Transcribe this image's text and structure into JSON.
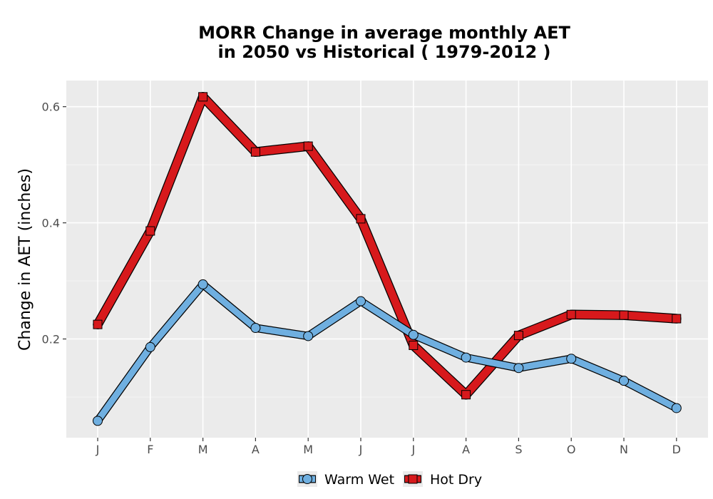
{
  "chart_data": {
    "type": "line",
    "title": "MORR  Change in average monthly AET",
    "subtitle": "in 2050 vs Historical ( 1979-2012 )",
    "xlabel": "",
    "ylabel": "Change in AET (inches)",
    "categories": [
      "J",
      "F",
      "M",
      "A",
      "M",
      "J",
      "J",
      "A",
      "S",
      "O",
      "N",
      "D"
    ],
    "ylim": [
      0.03,
      0.645
    ],
    "yticks": [
      0.2,
      0.4,
      0.6
    ],
    "ytick_labels": [
      "0.2",
      "0.4",
      "0.6"
    ],
    "grid": true,
    "legend_position": "bottom",
    "series": [
      {
        "name": "Warm Wet",
        "values": [
          0.059,
          0.186,
          0.294,
          0.219,
          0.205,
          0.265,
          0.207,
          0.168,
          0.15,
          0.166,
          0.128,
          0.081
        ],
        "color": "#6FAFE0",
        "marker": "circle"
      },
      {
        "name": "Hot Dry",
        "values": [
          0.225,
          0.386,
          0.617,
          0.522,
          0.532,
          0.407,
          0.189,
          0.104,
          0.206,
          0.242,
          0.241,
          0.235
        ],
        "color": "#D7191C",
        "marker": "square"
      }
    ]
  }
}
